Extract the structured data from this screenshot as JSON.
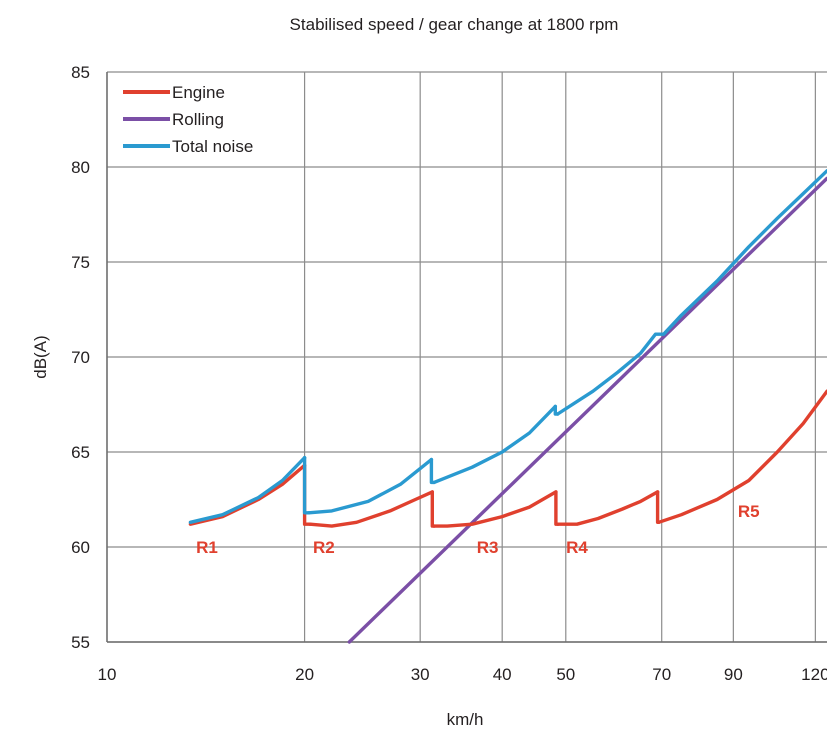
{
  "chart_data": {
    "type": "line",
    "title": "Stabilised speed / gear change at 1800 rpm",
    "xlabel": "km/h",
    "ylabel": "dB(A)",
    "x_scale": "log",
    "xlim": [
      10,
      125
    ],
    "ylim": [
      55,
      85
    ],
    "x_ticks": [
      "10",
      "20",
      "30",
      "40",
      "50",
      "70",
      "90",
      "120"
    ],
    "y_ticks": [
      "55",
      "60",
      "65",
      "70",
      "75",
      "80",
      "85"
    ],
    "grid": true,
    "legend_position": "top-left",
    "series": [
      {
        "name": "Engine",
        "color": "#e0402e",
        "segments": [
          [
            [
              13.4,
              61.2
            ],
            [
              15,
              61.6
            ],
            [
              17,
              62.5
            ],
            [
              18.5,
              63.3
            ],
            [
              20,
              64.3
            ]
          ],
          [
            [
              20.4,
              61.2
            ],
            [
              22,
              61.1
            ],
            [
              24,
              61.3
            ],
            [
              27,
              61.9
            ],
            [
              29.5,
              62.5
            ],
            [
              31.3,
              62.9
            ]
          ],
          [
            [
              31.5,
              61.1
            ],
            [
              33,
              61.1
            ],
            [
              36,
              61.2
            ],
            [
              40,
              61.6
            ],
            [
              44,
              62.1
            ],
            [
              48.3,
              62.9
            ]
          ],
          [
            [
              48.6,
              61.2
            ],
            [
              52,
              61.2
            ],
            [
              56,
              61.5
            ],
            [
              61,
              62.0
            ],
            [
              65,
              62.4
            ],
            [
              69,
              62.9
            ]
          ],
          [
            [
              69.3,
              61.3
            ],
            [
              75,
              61.7
            ],
            [
              85,
              62.5
            ],
            [
              95,
              63.5
            ],
            [
              105,
              65.0
            ],
            [
              115,
              66.5
            ],
            [
              125,
              68.2
            ]
          ]
        ]
      },
      {
        "name": "Rolling",
        "color": "#7b4fa6",
        "segments": [
          [
            [
              23.4,
              55.0
            ],
            [
              125,
              79.4
            ]
          ]
        ]
      },
      {
        "name": "Total noise",
        "color": "#2a9ad0",
        "segments": [
          [
            [
              13.4,
              61.3
            ],
            [
              15,
              61.7
            ],
            [
              17,
              62.6
            ],
            [
              18.5,
              63.5
            ],
            [
              20,
              64.7
            ]
          ],
          [
            [
              20.3,
              61.8
            ],
            [
              22,
              61.9
            ],
            [
              25,
              62.4
            ],
            [
              28,
              63.3
            ],
            [
              31.2,
              64.6
            ]
          ],
          [
            [
              31.5,
              63.4
            ],
            [
              36,
              64.2
            ],
            [
              40,
              65.0
            ],
            [
              44,
              66.0
            ],
            [
              48.2,
              67.4
            ]
          ],
          [
            [
              48.6,
              67.0
            ],
            [
              55,
              68.2
            ],
            [
              60,
              69.2
            ],
            [
              65,
              70.2
            ],
            [
              68.5,
              71.2
            ],
            [
              70.5,
              71.2
            ],
            [
              75,
              72.2
            ],
            [
              85,
              74.0
            ],
            [
              95,
              75.8
            ],
            [
              105,
              77.3
            ],
            [
              115,
              78.6
            ],
            [
              125,
              79.8
            ]
          ]
        ]
      }
    ],
    "annotations": [
      {
        "text": "R1",
        "x": 14.2,
        "y": 60.0
      },
      {
        "text": "R2",
        "x": 21.4,
        "y": 60.0
      },
      {
        "text": "R3",
        "x": 38.0,
        "y": 60.0
      },
      {
        "text": "R4",
        "x": 52.0,
        "y": 60.0
      },
      {
        "text": "R5",
        "x": 95.0,
        "y": 61.9
      }
    ]
  }
}
